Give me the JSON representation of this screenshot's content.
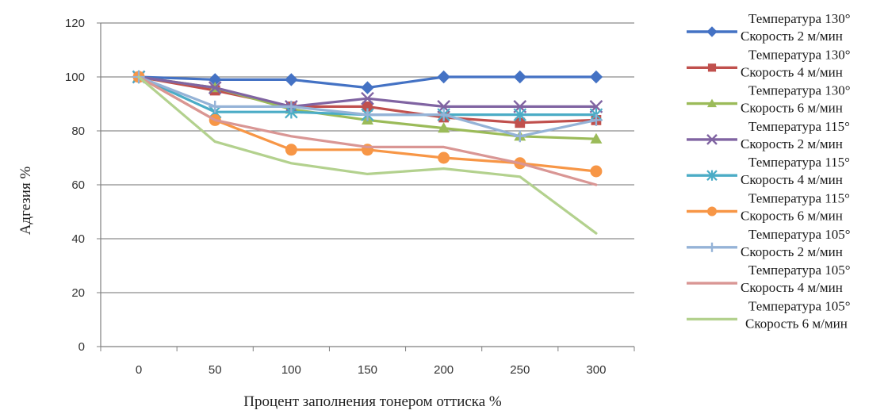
{
  "chart_data": {
    "type": "line",
    "title": "",
    "xlabel": "Процент заполнения тонером оттиска %",
    "ylabel": "Адгезия %",
    "categories": [
      "0",
      "50",
      "100",
      "150",
      "200",
      "250",
      "300"
    ],
    "ylim": [
      0,
      120
    ],
    "yticks": [
      "0",
      "20",
      "40",
      "60",
      "80",
      "100",
      "120"
    ],
    "grid": true,
    "legend_position": "right",
    "series": [
      {
        "name_line1": "Температура 130°",
        "name_line2": "Скорость 2 м/мин",
        "color": "#4472C4",
        "marker": "diamond",
        "values": [
          100,
          99,
          99,
          96,
          100,
          100,
          100
        ]
      },
      {
        "name_line1": "Температура 130°",
        "name_line2": "Скорость 4 м/мин",
        "color": "#C0504D",
        "marker": "square",
        "values": [
          100,
          95,
          89,
          89,
          85,
          83,
          84
        ]
      },
      {
        "name_line1": "Температура 130°",
        "name_line2": "Скорость 6 м/мин",
        "color": "#9BBB59",
        "marker": "triangle",
        "values": [
          100,
          96,
          88,
          84,
          81,
          78,
          77
        ]
      },
      {
        "name_line1": "Температура 115°",
        "name_line2": "Скорость 2 м/мин",
        "color": "#8064A2",
        "marker": "x",
        "values": [
          100,
          96,
          89,
          92,
          89,
          89,
          89
        ]
      },
      {
        "name_line1": "Температура 115°",
        "name_line2": "Скорость 4 м/мин",
        "color": "#4BACC6",
        "marker": "star",
        "values": [
          100,
          87,
          87,
          86,
          86,
          86,
          86
        ]
      },
      {
        "name_line1": "Температура 115°",
        "name_line2": "Скорость 6 м/мин",
        "color": "#F79646",
        "marker": "circle",
        "values": [
          100,
          84,
          73,
          73,
          70,
          68,
          65
        ]
      },
      {
        "name_line1": "Температура 105°",
        "name_line2": "Скорость 2 м/мин",
        "color": "#95B3D7",
        "marker": "plus",
        "values": [
          100,
          89,
          89,
          86,
          86,
          78,
          84
        ]
      },
      {
        "name_line1": "Температура 105°",
        "name_line2": "Скорость 4 м/мин",
        "color": "#D99694",
        "marker": "none",
        "values": [
          100,
          84,
          78,
          74,
          74,
          68,
          60
        ]
      },
      {
        "name_line1": "Температура 105°",
        "name_line2": "Скорость 6 м/мин",
        "color": "#B3D18E",
        "marker": "none",
        "values": [
          100,
          76,
          68,
          64,
          66,
          63,
          42
        ]
      }
    ]
  }
}
